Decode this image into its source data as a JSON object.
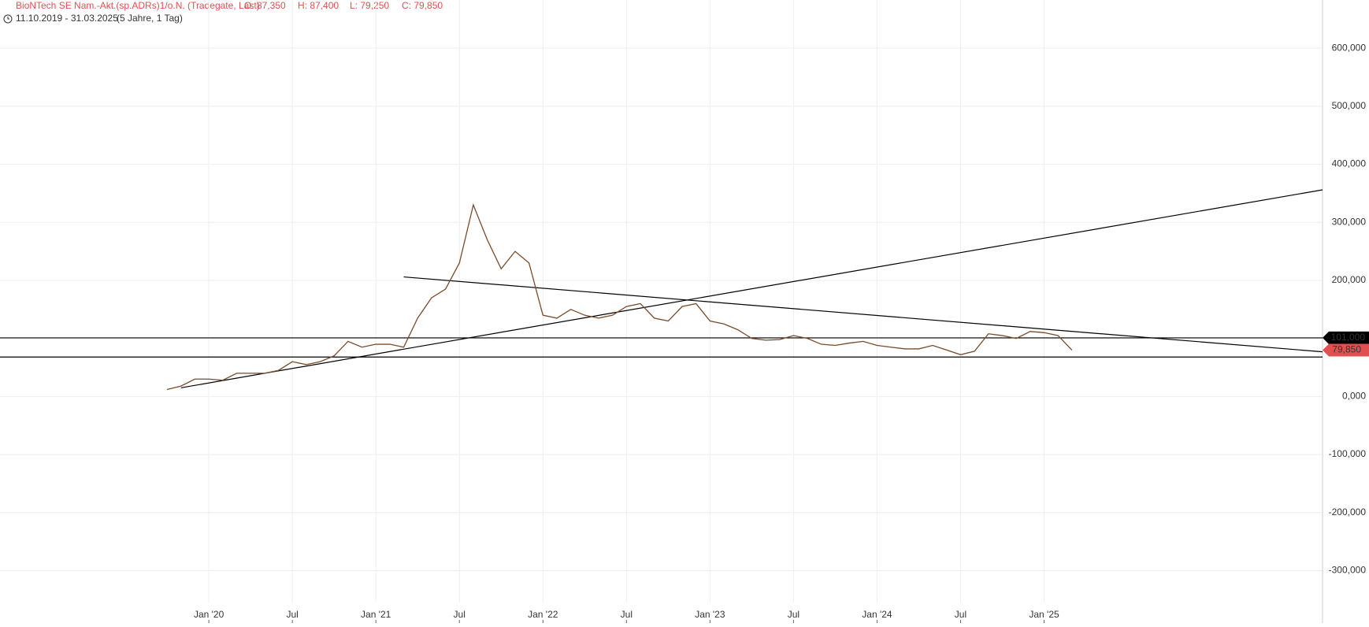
{
  "header": {
    "instrument": "BioNTech SE Nam.-Akt.(sp.ADRs)1/o.N. (Tradegate, Last)",
    "open": "O: 87,350",
    "high": "H: 87,400",
    "low": "L: 79,250",
    "close": "C: 79,850",
    "range": "11.10.2019 - 31.03.2025",
    "period": "(5 Jahre, 1 Tag)"
  },
  "chart_data": {
    "type": "line",
    "x": [
      "2019-10",
      "2019-11",
      "2019-12",
      "2020-01",
      "2020-02",
      "2020-03",
      "2020-04",
      "2020-05",
      "2020-06",
      "2020-07",
      "2020-08",
      "2020-09",
      "2020-10",
      "2020-11",
      "2020-12",
      "2021-01",
      "2021-02",
      "2021-03",
      "2021-04",
      "2021-05",
      "2021-06",
      "2021-07",
      "2021-08",
      "2021-09",
      "2021-10",
      "2021-11",
      "2021-12",
      "2022-01",
      "2022-02",
      "2022-03",
      "2022-04",
      "2022-05",
      "2022-06",
      "2022-07",
      "2022-08",
      "2022-09",
      "2022-10",
      "2022-11",
      "2022-12",
      "2023-01",
      "2023-02",
      "2023-03",
      "2023-04",
      "2023-05",
      "2023-06",
      "2023-07",
      "2023-08",
      "2023-09",
      "2023-10",
      "2023-11",
      "2023-12",
      "2024-01",
      "2024-02",
      "2024-03",
      "2024-04",
      "2024-05",
      "2024-06",
      "2024-07",
      "2024-08",
      "2024-09",
      "2024-10",
      "2024-11",
      "2024-12",
      "2025-01",
      "2025-02",
      "2025-03"
    ],
    "series": [
      {
        "name": "BioNTech",
        "color": "#7a4a2a",
        "values": [
          12,
          18,
          30,
          30,
          28,
          40,
          40,
          40,
          45,
          60,
          55,
          60,
          70,
          95,
          85,
          90,
          90,
          85,
          135,
          170,
          185,
          230,
          330,
          270,
          220,
          250,
          230,
          140,
          135,
          150,
          140,
          135,
          140,
          155,
          160,
          135,
          130,
          155,
          160,
          130,
          125,
          115,
          100,
          97,
          98,
          105,
          100,
          90,
          88,
          92,
          95,
          88,
          85,
          82,
          82,
          88,
          80,
          72,
          78,
          108,
          105,
          100,
          112,
          110,
          105,
          80
        ]
      }
    ],
    "xlim": [
      "2018-10",
      "2026-09"
    ],
    "xticks": [
      {
        "value": "2020-01",
        "label": "Jan '20"
      },
      {
        "value": "2020-07",
        "label": "Jul"
      },
      {
        "value": "2021-01",
        "label": "Jan '21"
      },
      {
        "value": "2021-07",
        "label": "Jul"
      },
      {
        "value": "2022-01",
        "label": "Jan '22"
      },
      {
        "value": "2022-07",
        "label": "Jul"
      },
      {
        "value": "2023-01",
        "label": "Jan '23"
      },
      {
        "value": "2023-07",
        "label": "Jul"
      },
      {
        "value": "2024-01",
        "label": "Jan '24"
      },
      {
        "value": "2024-07",
        "label": "Jul"
      },
      {
        "value": "2025-01",
        "label": "Jan '25"
      }
    ],
    "ylim": [
      -355,
      683
    ],
    "yticks": [
      {
        "value": -300,
        "label": "-300,000"
      },
      {
        "value": -200,
        "label": "-200,000"
      },
      {
        "value": -100,
        "label": "-100,000"
      },
      {
        "value": 0,
        "label": "0,000"
      },
      {
        "value": 100,
        "label": "100,000"
      },
      {
        "value": 200,
        "label": "200,000"
      },
      {
        "value": 300,
        "label": "300,000"
      },
      {
        "value": 400,
        "label": "400,000"
      },
      {
        "value": 500,
        "label": "500,000"
      },
      {
        "value": 600,
        "label": "600,000"
      }
    ],
    "grid": true,
    "trendlines": [
      {
        "x": [
          "2019-11",
          "2026-09"
        ],
        "y": [
          15,
          356
        ]
      },
      {
        "x": [
          "2021-03",
          "2026-09"
        ],
        "y": [
          206,
          77
        ]
      }
    ],
    "hlines": [
      {
        "value": 101,
        "label": "101,000"
      },
      {
        "value": 68
      }
    ],
    "last_price": {
      "value": 79.85,
      "label": "79,850",
      "color": "#e05050"
    }
  }
}
